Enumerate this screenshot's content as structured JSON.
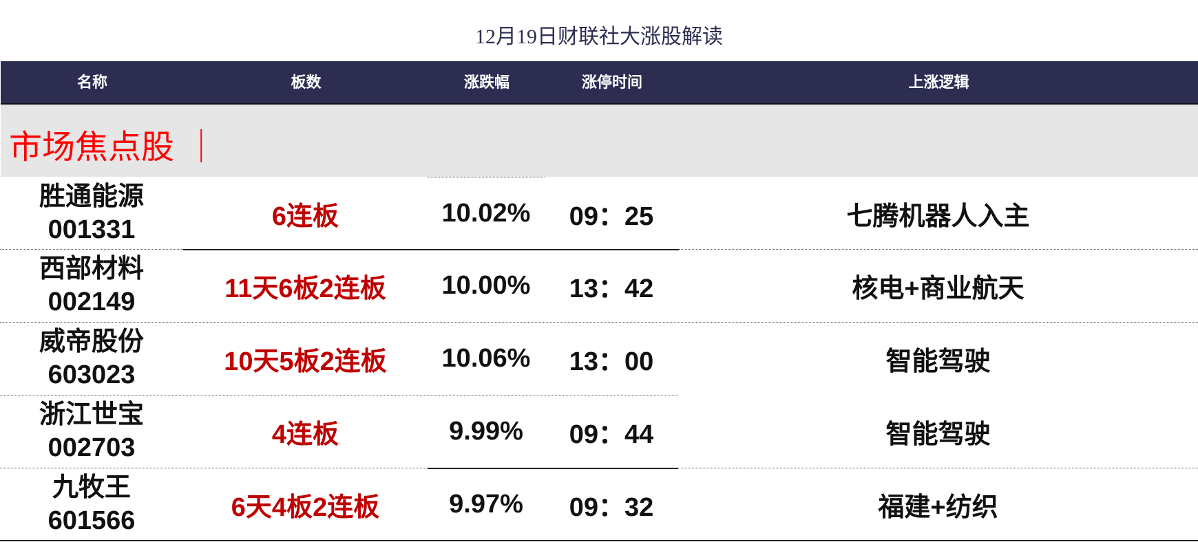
{
  "title": "12月19日财联社大涨股解读",
  "headers": {
    "name": "名称",
    "board": "板数",
    "pct": "涨跌幅",
    "time": "涨停时间",
    "logic": "上涨逻辑"
  },
  "section_title": "市场焦点股 ｜",
  "rows": [
    {
      "name": "胜通能源",
      "code": "001331",
      "board": "6连板",
      "pct": "10.02%",
      "time": "09：25",
      "logic": "七腾机器人入主"
    },
    {
      "name": "西部材料",
      "code": "002149",
      "board": "11天6板2连板",
      "pct": "10.00%",
      "time": "13：42",
      "logic": "核电+商业航天"
    },
    {
      "name": "威帝股份",
      "code": "603023",
      "board": "10天5板2连板",
      "pct": "10.06%",
      "time": "13：00",
      "logic": "智能驾驶"
    },
    {
      "name": "浙江世宝",
      "code": "002703",
      "board": "4连板",
      "pct": "9.99%",
      "time": "09：44",
      "logic": "智能驾驶"
    },
    {
      "name": "九牧王",
      "code": "601566",
      "board": "6天4板2连板",
      "pct": "9.97%",
      "time": "09：32",
      "logic": "福建+纺织"
    }
  ],
  "colors": {
    "header_bg": "#2d2d52",
    "section_bg": "#e6e6e6",
    "section_text": "#ff0000",
    "board_text": "#c00000"
  }
}
